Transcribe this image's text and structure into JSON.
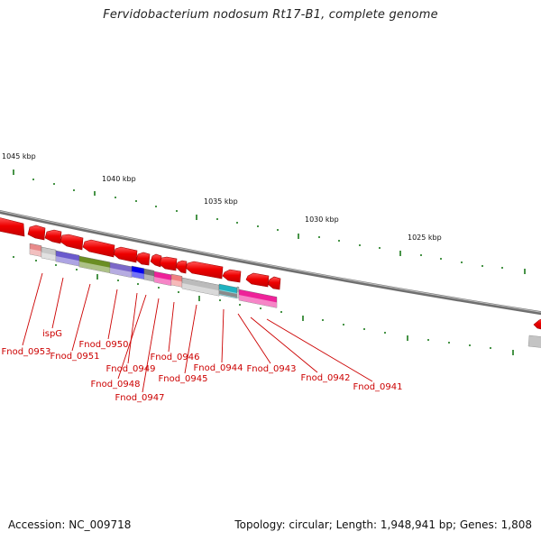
{
  "title": "Fervidobacterium nodosum Rt17-B1, complete genome",
  "accession": "Accession: NC_009718",
  "summary": "Topology: circular; Length: 1,948,941 bp; Genes: 1,808",
  "scale": {
    "labels": [
      {
        "text": "1045 kbp",
        "name": "kbp-label-1045"
      },
      {
        "text": "1040 kbp",
        "name": "kbp-label-1040"
      },
      {
        "text": "1035 kbp",
        "name": "kbp-label-1035"
      },
      {
        "text": "1030 kbp",
        "name": "kbp-label-1030"
      },
      {
        "text": "1025 kbp",
        "name": "kbp-label-1025"
      }
    ]
  },
  "genes": [
    {
      "label": "Fnod_0953",
      "color": "#e88a8a"
    },
    {
      "label": "ispG",
      "color": "#6a5acd"
    },
    {
      "label": "Fnod_0951",
      "color": "#6b8e23"
    },
    {
      "label": "Fnod_0950",
      "color": "#7b68c8"
    },
    {
      "label": "Fnod_0949",
      "color": "#0000ee"
    },
    {
      "label": "Fnod_0948",
      "color": "#777777"
    },
    {
      "label": "Fnod_0947",
      "color": "#ee2299"
    },
    {
      "label": "Fnod_0946",
      "color": "#f08080"
    },
    {
      "label": "Fnod_0945",
      "color": "#9a9a9a"
    },
    {
      "label": "Fnod_0944",
      "color": "#bbbbbb"
    },
    {
      "label": "Fnod_0943",
      "color": "#20b2c0"
    },
    {
      "label": "Fnod_0942",
      "color": "#ee2299"
    },
    {
      "label": "Fnod_0941",
      "color": "#ee2299"
    }
  ],
  "colors": {
    "cds_arrow": "#ee0000",
    "backbone": "#8a8a8a",
    "tick": "#1a7a1a",
    "label": "#cc0000"
  }
}
